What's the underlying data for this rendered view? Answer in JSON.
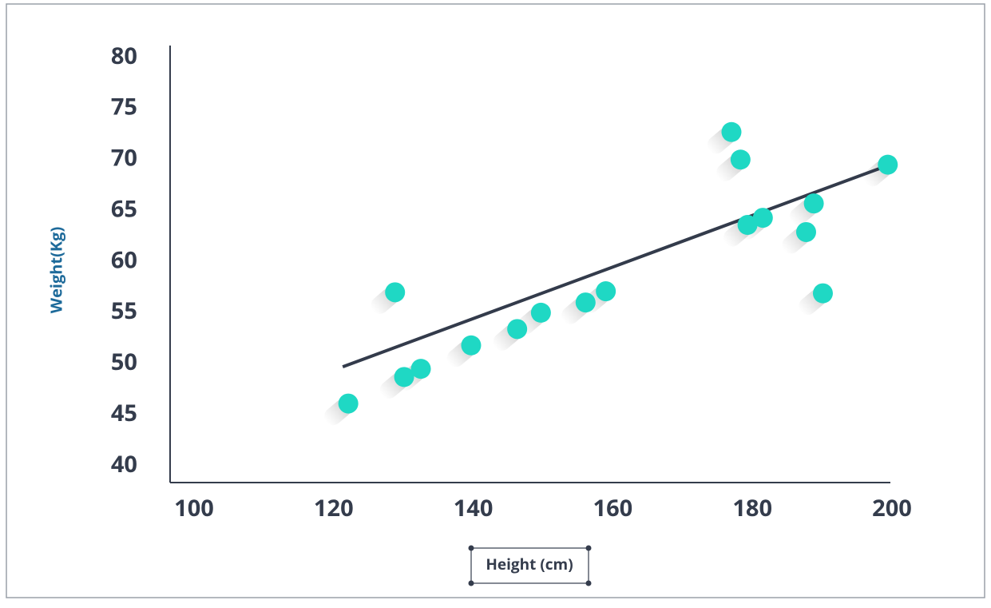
{
  "chart_data": {
    "type": "scatter",
    "xlabel": "Height (cm)",
    "ylabel": "Weight(Kg)",
    "xlim": [
      100,
      200
    ],
    "xticks": [
      100,
      120,
      140,
      160,
      180,
      200
    ],
    "ylim": [
      40,
      80
    ],
    "yticks": [
      40,
      45,
      50,
      55,
      60,
      65,
      70,
      75,
      80
    ],
    "color": "#1fd8c4",
    "x": [
      122.1,
      128.8,
      130.1,
      132.5,
      139.7,
      146.3,
      149.7,
      156.1,
      159.0,
      177.0,
      178.3,
      179.3,
      181.5,
      187.7,
      188.8,
      190.1,
      199.4
    ],
    "y": [
      46.1,
      57.0,
      48.7,
      49.5,
      51.8,
      53.4,
      55.0,
      56.0,
      57.1,
      72.7,
      70.0,
      63.6,
      64.3,
      62.9,
      65.7,
      56.9,
      69.5
    ],
    "trend_line": {
      "color": "#333b4b",
      "x": [
        121.3,
        198.5
      ],
      "y": [
        49.7,
        69.2
      ]
    }
  }
}
